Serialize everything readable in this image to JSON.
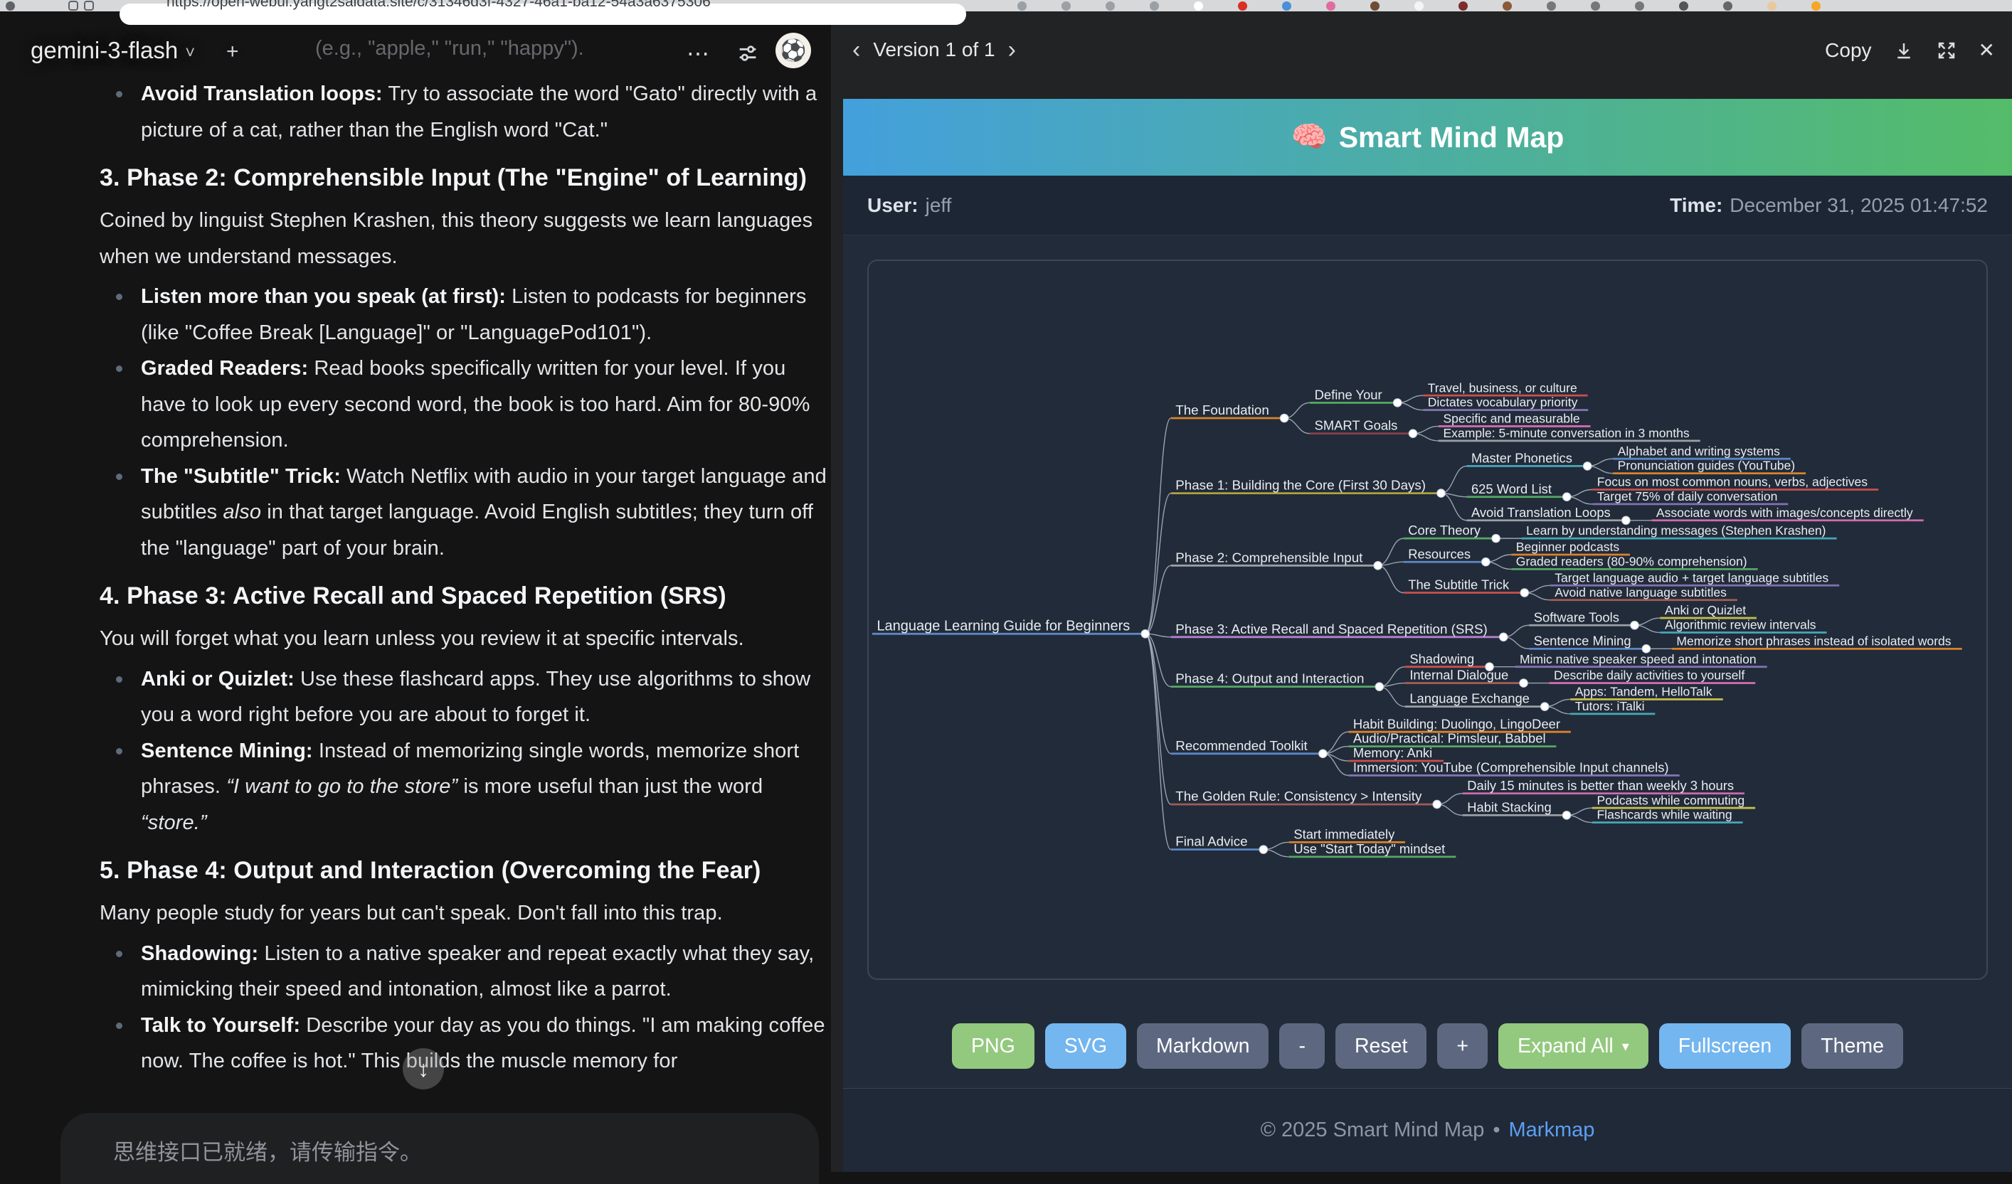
{
  "browser": {
    "url": "https://open-webui.yangt2saidata.site/c/31346d3f-4327-46a1-ba12-54a3a6375306",
    "extension_icon_colors": [
      "#9aa0a6",
      "#9aa0a6",
      "#9aa0a6",
      "#9aa0a6",
      "#ffffff",
      "#d93025",
      "#4a90d9",
      "#e06c9f",
      "#6d4c33",
      "#f5f5f5",
      "#7b2c2c",
      "#8a5a3b",
      "#777777",
      "#777777",
      "#777777",
      "#555555",
      "#666666",
      "#e8c8a0",
      "#f5a623"
    ]
  },
  "chat": {
    "model_name": "gemini-3-flash",
    "faded_line": "(e.g., \"apple,\" \"run,\" \"happy\").",
    "input_placeholder": "思维接口已就绪，请传输指令。",
    "blocks": [
      {
        "type": "bullets",
        "items": [
          [
            {
              "b": "Avoid Translation loops:"
            },
            {
              "t": " Try to associate the word \"Gato\" directly with a picture of a cat, rather than the English word \"Cat.\""
            }
          ]
        ]
      },
      {
        "type": "h3",
        "text": "3. Phase 2: Comprehensible Input (The \"Engine\" of Learning)"
      },
      {
        "type": "p",
        "runs": [
          {
            "t": "Coined by linguist Stephen Krashen, this theory suggests we learn languages when we understand messages."
          }
        ]
      },
      {
        "type": "bullets",
        "items": [
          [
            {
              "b": "Listen more than you speak (at first):"
            },
            {
              "t": " Listen to podcasts for beginners (like \"Coffee Break [Language]\" or \"LanguagePod101\")."
            }
          ],
          [
            {
              "b": "Graded Readers:"
            },
            {
              "t": " Read books specifically written for your level. If you have to look up every second word, the book is too hard. Aim for 80-90% comprehension."
            }
          ],
          [
            {
              "b": "The \"Subtitle\" Trick:"
            },
            {
              "t": " Watch Netflix with audio in your target language and subtitles "
            },
            {
              "i": "also"
            },
            {
              "t": " in that target language. Avoid English subtitles; they turn off the \"language\" part of your brain."
            }
          ]
        ]
      },
      {
        "type": "h3",
        "text": "4. Phase 3: Active Recall and Spaced Repetition (SRS)"
      },
      {
        "type": "p",
        "runs": [
          {
            "t": "You will forget what you learn unless you review it at specific intervals."
          }
        ]
      },
      {
        "type": "bullets",
        "items": [
          [
            {
              "b": "Anki or Quizlet:"
            },
            {
              "t": " Use these flashcard apps. They use algorithms to show you a word right before you are about to forget it."
            }
          ],
          [
            {
              "b": "Sentence Mining:"
            },
            {
              "t": " Instead of memorizing single words, memorize short phrases. "
            },
            {
              "i": "“I want to go to the store”"
            },
            {
              "t": " is more useful than just the word "
            },
            {
              "i": "“store.”"
            }
          ]
        ]
      },
      {
        "type": "h3",
        "text": "5. Phase 4: Output and Interaction (Overcoming the Fear)"
      },
      {
        "type": "p",
        "runs": [
          {
            "t": "Many people study for years but can't speak. Don't fall into this trap."
          }
        ]
      },
      {
        "type": "bullets",
        "items": [
          [
            {
              "b": "Shadowing:"
            },
            {
              "t": " Listen to a native speaker and repeat exactly what they say, mimicking their speed and intonation, almost like a parrot."
            }
          ],
          [
            {
              "b": "Talk to Yourself:"
            },
            {
              "t": " Describe your day as you do things. \"I am making coffee now. The coffee is hot.\" This builds the muscle memory for"
            }
          ]
        ]
      }
    ]
  },
  "preview": {
    "version_label": "Version 1 of 1",
    "prev_chevron": "‹",
    "next_chevron": "›",
    "copy_label": "Copy",
    "close_glyph": "✕",
    "title_emoji": "🧠",
    "title": "Smart Mind Map",
    "user_label": "User:",
    "user_value": "jeff",
    "time_label": "Time:",
    "time_value": "December 31, 2025 01:47:52",
    "buttons": [
      {
        "label": "PNG",
        "style": "green"
      },
      {
        "label": "SVG",
        "style": "blue"
      },
      {
        "label": "Markdown",
        "style": "slate"
      },
      {
        "label": "-",
        "style": "slate"
      },
      {
        "label": "Reset",
        "style": "slate"
      },
      {
        "label": "+",
        "style": "slate"
      },
      {
        "label": "Expand All",
        "style": "green",
        "caret": "▾"
      },
      {
        "label": "Fullscreen",
        "style": "blue"
      },
      {
        "label": "Theme",
        "style": "slate"
      }
    ],
    "footer": {
      "text": "© 2025 Smart Mind Map",
      "separator": "•",
      "link": "Markmap"
    }
  },
  "mindmap": {
    "colors": {
      "link": "#b9c2cf",
      "node_fill": "#ffffff",
      "text": "#e9ecf1",
      "background": "#222b39"
    },
    "root": {
      "label": "Language Learning Guide for Beginners",
      "color": "#5b87c5",
      "children": [
        {
          "label": "The Foundation",
          "color": "#d9822b",
          "children": [
            {
              "label": "Define Your",
              "color": "#56a865",
              "children": [
                {
                  "label": "Travel, business, or culture",
                  "color": "#c8504f"
                },
                {
                  "label": "Dictates vocabulary priority",
                  "color": "#8172b2"
                }
              ]
            },
            {
              "label": "SMART Goals",
              "color": "#8b4049",
              "children": [
                {
                  "label": "Specific and measurable",
                  "color": "#d06bb0"
                },
                {
                  "label": "Example: 5-minute conversation in 3 months",
                  "color": "#9aa0a6"
                }
              ]
            }
          ]
        },
        {
          "label": "Phase 1: Building the Core (First 30 Days)",
          "color": "#b0a23c",
          "children": [
            {
              "label": "Master Phonetics",
              "color": "#45a8b8",
              "children": [
                {
                  "label": "Alphabet and writing systems",
                  "color": "#5b87c5"
                },
                {
                  "label": "Pronunciation guides (YouTube)",
                  "color": "#d9822b"
                }
              ]
            },
            {
              "label": "625 Word List",
              "color": "#56a865",
              "children": [
                {
                  "label": "Focus on most common nouns, verbs, adjectives",
                  "color": "#c8504f"
                },
                {
                  "label": "Target 75% of daily conversation",
                  "color": "#8172b2"
                }
              ]
            },
            {
              "label": "Avoid Translation Loops",
              "color": "#9aa0a6",
              "children": [
                {
                  "label": "Associate words with images/concepts directly",
                  "color": "#d06bb0"
                }
              ]
            }
          ]
        },
        {
          "label": "Phase 2: Comprehensible Input",
          "color": "#9aa0a6",
          "children": [
            {
              "label": "Core Theory",
              "color": "#56a865",
              "children": [
                {
                  "label": "Learn by understanding messages (Stephen Krashen)",
                  "color": "#45a8b8"
                }
              ]
            },
            {
              "label": "Resources",
              "color": "#5b87c5",
              "children": [
                {
                  "label": "Beginner podcasts",
                  "color": "#d9822b"
                },
                {
                  "label": "Graded readers (80-90% comprehension)",
                  "color": "#56a865"
                }
              ]
            },
            {
              "label": "The Subtitle Trick",
              "color": "#c8504f",
              "children": [
                {
                  "label": "Target language audio + target language subtitles",
                  "color": "#8172b2"
                },
                {
                  "label": "Avoid native language subtitles",
                  "color": "#a05d56"
                }
              ]
            }
          ]
        },
        {
          "label": "Phase 3: Active Recall and Spaced Repetition (SRS)",
          "color": "#b57fd0",
          "children": [
            {
              "label": "Software Tools",
              "color": "#9aa0a6",
              "children": [
                {
                  "label": "Anki or Quizlet",
                  "color": "#c2bb4a"
                },
                {
                  "label": "Algorithmic review intervals",
                  "color": "#45a8b8"
                }
              ]
            },
            {
              "label": "Sentence Mining",
              "color": "#5b87c5",
              "children": [
                {
                  "label": "Memorize short phrases instead of isolated words",
                  "color": "#d9822b"
                }
              ]
            }
          ]
        },
        {
          "label": "Phase 4: Output and Interaction",
          "color": "#56a865",
          "children": [
            {
              "label": "Shadowing",
              "color": "#c8504f",
              "children": [
                {
                  "label": "Mimic native speaker speed and intonation",
                  "color": "#8172b2"
                }
              ]
            },
            {
              "label": "Internal Dialogue",
              "color": "#a05d56",
              "children": [
                {
                  "label": "Describe daily activities to yourself",
                  "color": "#d06bb0"
                }
              ]
            },
            {
              "label": "Language Exchange",
              "color": "#9aa0a6",
              "children": [
                {
                  "label": "Apps: Tandem, HelloTalk",
                  "color": "#c2bb4a"
                },
                {
                  "label": "Tutors: iTalki",
                  "color": "#45a8b8"
                }
              ]
            }
          ]
        },
        {
          "label": "Recommended Toolkit",
          "color": "#5b87c5",
          "children": [
            {
              "label": "Habit Building: Duolingo, LingoDeer",
              "color": "#d9822b"
            },
            {
              "label": "Audio/Practical: Pimsleur, Babbel",
              "color": "#56a865"
            },
            {
              "label": "Memory: Anki",
              "color": "#c8504f"
            },
            {
              "label": "Immersion: YouTube (Comprehensible Input channels)",
              "color": "#8172b2"
            }
          ]
        },
        {
          "label": "The Golden Rule: Consistency > Intensity",
          "color": "#a05d56",
          "children": [
            {
              "label": "Daily 15 minutes is better than weekly 3 hours",
              "color": "#d06bb0"
            },
            {
              "label": "Habit Stacking",
              "color": "#9aa0a6",
              "children": [
                {
                  "label": "Podcasts while commuting",
                  "color": "#c2bb4a"
                },
                {
                  "label": "Flashcards while waiting",
                  "color": "#45a8b8"
                }
              ]
            }
          ]
        },
        {
          "label": "Final Advice",
          "color": "#5b87c5",
          "children": [
            {
              "label": "Start immediately",
              "color": "#d9822b"
            },
            {
              "label": "Use \"Start Today\" mindset",
              "color": "#56a865"
            }
          ]
        }
      ]
    }
  }
}
